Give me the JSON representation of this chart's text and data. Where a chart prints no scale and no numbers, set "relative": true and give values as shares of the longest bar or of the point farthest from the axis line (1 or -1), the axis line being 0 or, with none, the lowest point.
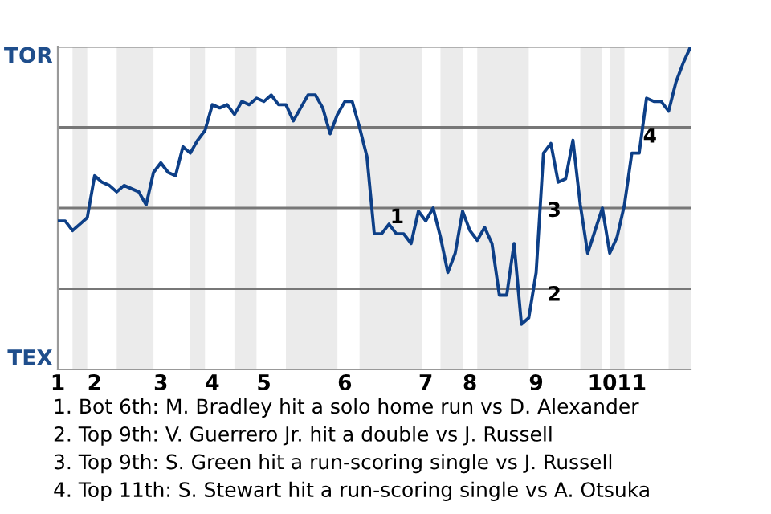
{
  "chart_data": {
    "type": "line",
    "relative": true,
    "categories": [
      "1",
      null,
      null,
      null,
      null,
      "2",
      null,
      null,
      null,
      null,
      null,
      null,
      null,
      null,
      "3",
      null,
      null,
      null,
      null,
      null,
      null,
      "4",
      null,
      null,
      null,
      null,
      null,
      null,
      "5",
      null,
      null,
      null,
      null,
      null,
      null,
      null,
      null,
      null,
      null,
      "6",
      null,
      null,
      null,
      null,
      null,
      null,
      null,
      null,
      null,
      null,
      "7",
      null,
      null,
      null,
      null,
      null,
      "8",
      null,
      null,
      null,
      null,
      null,
      null,
      null,
      null,
      "9",
      null,
      null,
      null,
      null,
      null,
      null,
      null,
      null,
      "10",
      null,
      null,
      null,
      "11",
      null,
      null,
      null,
      null,
      null,
      null,
      null,
      null
    ],
    "series": [
      {
        "color": "#0d3f87",
        "values": [
          0.46,
          0.46,
          0.43,
          0.45,
          0.47,
          0.6,
          0.58,
          0.57,
          0.55,
          0.57,
          0.56,
          0.55,
          0.51,
          0.61,
          0.64,
          0.61,
          0.6,
          0.69,
          0.67,
          0.71,
          0.74,
          0.82,
          0.81,
          0.82,
          0.79,
          0.83,
          0.82,
          0.84,
          0.83,
          0.85,
          0.82,
          0.82,
          0.77,
          0.81,
          0.85,
          0.85,
          0.81,
          0.73,
          0.79,
          0.83,
          0.83,
          0.75,
          0.66,
          0.42,
          0.42,
          0.45,
          0.42,
          0.42,
          0.39,
          0.49,
          0.46,
          0.5,
          0.41,
          0.3,
          0.36,
          0.49,
          0.43,
          0.4,
          0.44,
          0.39,
          0.23,
          0.23,
          0.39,
          0.14,
          0.16,
          0.3,
          0.67,
          0.7,
          0.58,
          0.59,
          0.71,
          0.51,
          0.36,
          0.43,
          0.5,
          0.36,
          0.41,
          0.51,
          0.67,
          0.67,
          0.84,
          0.83,
          0.83,
          0.8,
          0.89,
          0.95,
          1.0
        ]
      }
    ],
    "line_style": "solid",
    "marker": "none",
    "ref_lines": [
      {
        "axis": "y",
        "value": 0.25,
        "color": "#777777"
      },
      {
        "axis": "y",
        "value": 0.5,
        "color": "#777777"
      },
      {
        "axis": "y",
        "value": 0.75,
        "color": "#777777"
      },
      {
        "axis": "y",
        "value": 1.0,
        "color": "#777777"
      }
    ],
    "annotations": [
      "TOR",
      "TEX",
      "1",
      {
        "text": "2",
        "x": "9",
        "y": 0.23
      },
      {
        "text": "3",
        "x": "9",
        "y": 0.49
      },
      {
        "text": "4",
        "x": "11",
        "y": 0.72
      },
      "1. Bot 6th: M. Bradley hit a solo home run vs D. Alexander",
      "2. Top 9th: V. Guerrero Jr. hit a double vs J. Russell",
      "3. Top 9th: S. Green hit a run-scoring single vs J. Russell",
      "4. Top 11th: S. Stewart hit a run-scoring single vs A. Otsuka"
    ]
  }
}
